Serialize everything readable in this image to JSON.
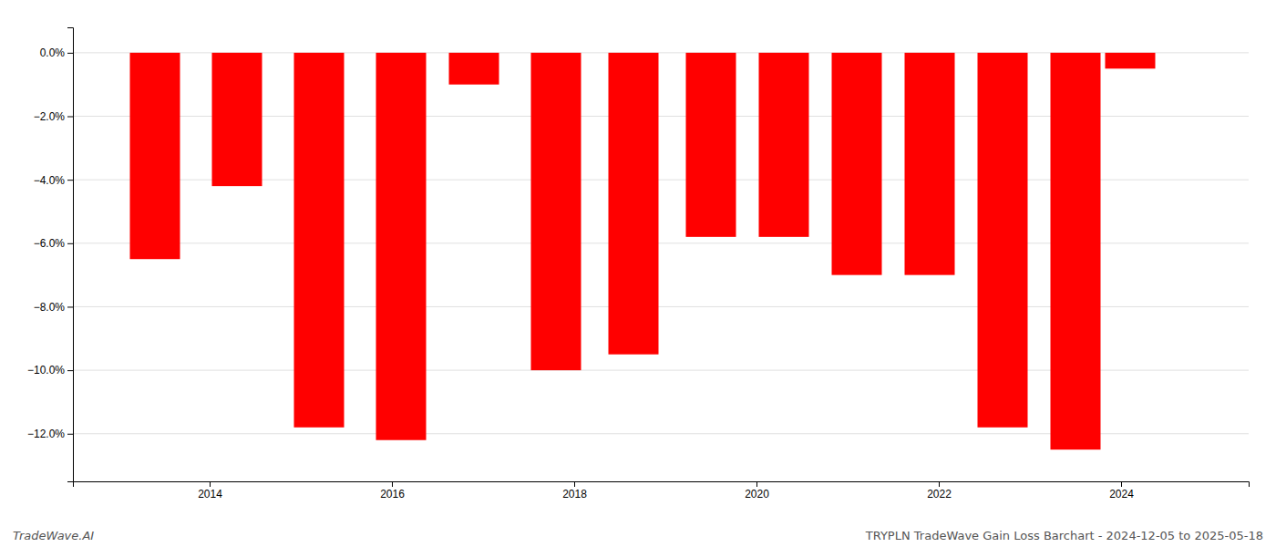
{
  "chart_data": {
    "type": "bar",
    "x": [
      2013.4,
      2014.3,
      2015.2,
      2016.1,
      2016.9,
      2017.8,
      2018.65,
      2019.5,
      2020.3,
      2021.1,
      2021.9,
      2022.7,
      2023.5,
      2024.1
    ],
    "values": [
      -6.5,
      -4.2,
      -11.8,
      -12.2,
      -1.0,
      -10.0,
      -9.5,
      -5.8,
      -5.8,
      -7.0,
      -7.0,
      -11.8,
      -12.5,
      -0.5
    ],
    "color": "#ff0000",
    "xlim": [
      2012.5,
      2025.4
    ],
    "xticks": [
      2014,
      2016,
      2018,
      2020,
      2022,
      2024
    ],
    "ylim": [
      -13.5,
      0.8
    ],
    "yticks": [
      {
        "value": 0.0,
        "label": "0.0%"
      },
      {
        "value": -2.0,
        "label": "−2.0%"
      },
      {
        "value": -4.0,
        "label": "−4.0%"
      },
      {
        "value": -6.0,
        "label": "−6.0%"
      },
      {
        "value": -8.0,
        "label": "−8.0%"
      },
      {
        "value": -10.0,
        "label": "−10.0%"
      },
      {
        "value": -12.0,
        "label": "−12.0%"
      }
    ],
    "grid": true,
    "annotations": [
      "TradeWave.AI",
      "TRYPLN TradeWave Gain Loss Barchart - 2024-12-05 to 2025-05-18"
    ]
  }
}
